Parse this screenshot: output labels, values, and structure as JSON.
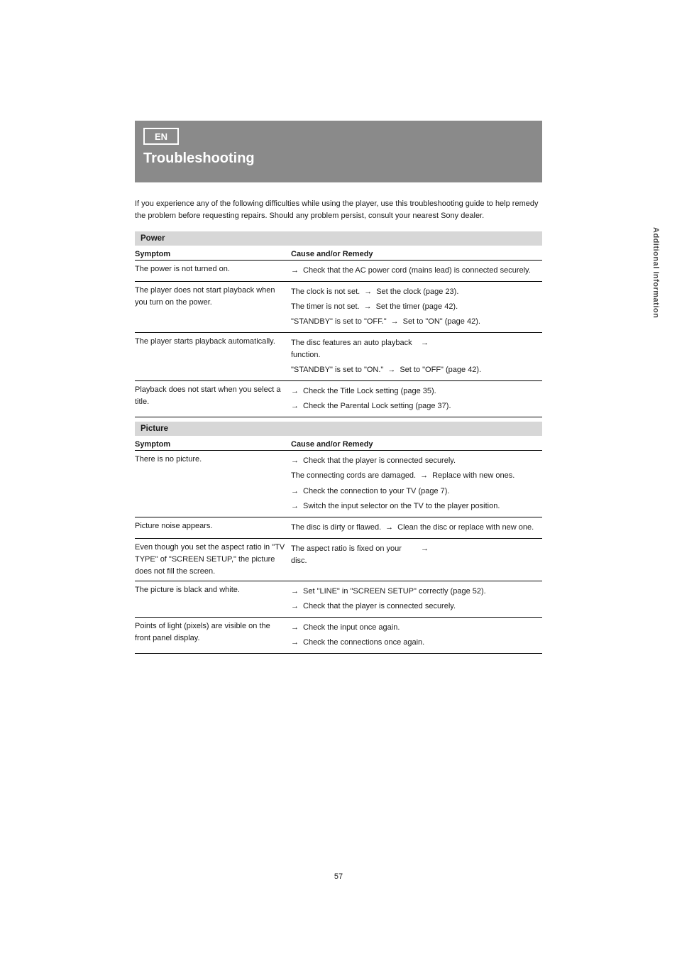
{
  "sidebarLabel": "Additional Information",
  "header": {
    "langIcon": "EN",
    "title": "Troubleshooting"
  },
  "intro": "If you experience any of the following difficulties while using the player, use this troubleshooting guide to help remedy the problem before requesting repairs. Should any problem persist, consult your nearest Sony dealer.",
  "sections": [
    {
      "band": "Power",
      "columns": {
        "symptom": "Symptom",
        "cause": "Cause and/or Remedy"
      },
      "rows": [
        {
          "symptom": "The power is not turned on.",
          "causes": [
            {
              "cause": "",
              "remedy": "Check that the AC power cord (mains lead) is connected securely."
            }
          ]
        },
        {
          "symptom": "The player does not start playback when you turn on the power.",
          "causes": [
            {
              "cause": "The clock is not set.",
              "remedy": "Set the clock (page 23)."
            },
            {
              "cause": "The timer is not set.",
              "remedy": "Set the timer (page 42)."
            },
            {
              "cause": "\"STANDBY\" is set to \"OFF.\"",
              "remedy": "Set to \"ON\" (page 42)."
            }
          ]
        },
        {
          "symptom": "The player starts playback automatically.",
          "causes": [
            {
              "cause": "The disc features an auto playback function.",
              "remedy": ""
            },
            {
              "cause": "\"STANDBY\" is set to \"ON.\"",
              "remedy": "Set to \"OFF\" (page 42)."
            }
          ]
        },
        {
          "symptom": "Playback does not start when you select a title.",
          "causes": [
            {
              "cause": "",
              "remedy": "Check the Title Lock setting (page 35)."
            },
            {
              "cause": "",
              "remedy": "Check the Parental Lock setting (page 37)."
            }
          ]
        }
      ]
    },
    {
      "band": "Picture",
      "columns": {
        "symptom": "Symptom",
        "cause": "Cause and/or Remedy"
      },
      "rows": [
        {
          "symptom": "There is no picture.",
          "causes": [
            {
              "cause": "",
              "remedy": "Check that the player is connected securely."
            },
            {
              "cause": "The connecting cords are damaged.",
              "remedy": "Replace with new ones."
            },
            {
              "cause": "",
              "remedy": "Check the connection to your TV (page 7)."
            },
            {
              "cause": "",
              "remedy": "Switch the input selector on the TV to the player position."
            }
          ]
        },
        {
          "symptom": "Picture noise appears.",
          "causes": [
            {
              "cause": "The disc is dirty or flawed.",
              "remedy": "Clean the disc or replace with new one."
            }
          ]
        },
        {
          "symptom": "Even though you set the aspect ratio in \"TV TYPE\" of \"SCREEN SETUP,\" the picture does not fill the screen.",
          "causes": [
            {
              "cause": "The aspect ratio is fixed on your disc.",
              "remedy": ""
            }
          ]
        },
        {
          "symptom": "The picture is black and white.",
          "causes": [
            {
              "cause": "",
              "remedy": "Set \"LINE\" in \"SCREEN SETUP\" correctly (page 52)."
            },
            {
              "cause": "",
              "remedy": "Check that the player is connected securely."
            }
          ]
        },
        {
          "symptom": "Points of light (pixels) are visible on the front panel display.",
          "causes": [
            {
              "cause": "",
              "remedy": "Check the input once again."
            },
            {
              "cause": "",
              "remedy": "Check the connections once again."
            }
          ]
        }
      ]
    }
  ],
  "pageNumber": "57"
}
